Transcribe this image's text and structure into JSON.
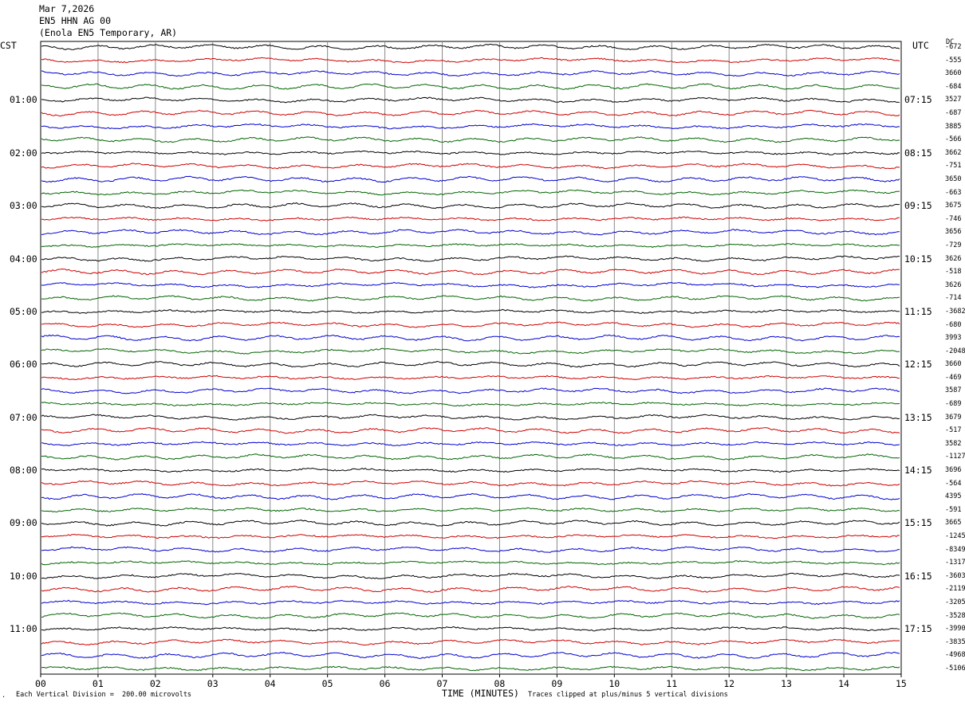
{
  "header": {
    "date": "Mar 7,2026",
    "station": "EN5 HHN AG 00",
    "location": "(Enola EN5 Temporary, AR)"
  },
  "colors": {
    "trace_cycle": [
      "#000000",
      "#d00000",
      "#0000d0",
      "#006400"
    ],
    "grid": "#888888"
  },
  "chart_data": {
    "type": "line",
    "title": "EN5 HHN AG 00",
    "xlabel": "TIME (MINUTES)",
    "xlim": [
      0,
      15
    ],
    "x_ticks": [
      "00",
      "01",
      "02",
      "03",
      "04",
      "05",
      "06",
      "07",
      "08",
      "09",
      "10",
      "11",
      "12",
      "13",
      "14",
      "15"
    ],
    "left_axis_label": "CST",
    "right_axis_label": "UTC",
    "dc_label": "DC",
    "traces_per_hour": 4,
    "trace_count": 48,
    "left_hour_labels": [
      "01:00",
      "02:00",
      "03:00",
      "04:00",
      "05:00",
      "06:00",
      "07:00",
      "08:00",
      "09:00",
      "10:00",
      "11:00"
    ],
    "right_hour_labels": [
      "07:15",
      "08:15",
      "09:15",
      "10:15",
      "11:15",
      "12:15",
      "13:15",
      "14:15",
      "15:15",
      "16:15",
      "17:15"
    ],
    "dc_offsets": [
      "-672",
      "-555",
      "3660",
      "-684",
      "3527",
      "-687",
      "3885",
      "-566",
      "3662",
      "-751",
      "3650",
      "-663",
      "3675",
      "-746",
      "3656",
      "-729",
      "3626",
      "-518",
      "3626",
      "-714",
      "-3682",
      "-680",
      "3993",
      "-2048",
      "3660",
      "-469",
      "3587",
      "-689",
      "3679",
      "-517",
      "3582",
      "-1127",
      "3696",
      "-564",
      "4395",
      "-591",
      "3665",
      "-1245",
      "-8349",
      "-1317",
      "-3603",
      "-2119",
      "-3205",
      "-3528",
      "-3990",
      "-3835",
      "-4968",
      "-5106"
    ],
    "scale_note": "Each Vertical Division =  200.00 microvolts",
    "clip_note": "Traces clipped at plus/minus 5 vertical divisions"
  }
}
